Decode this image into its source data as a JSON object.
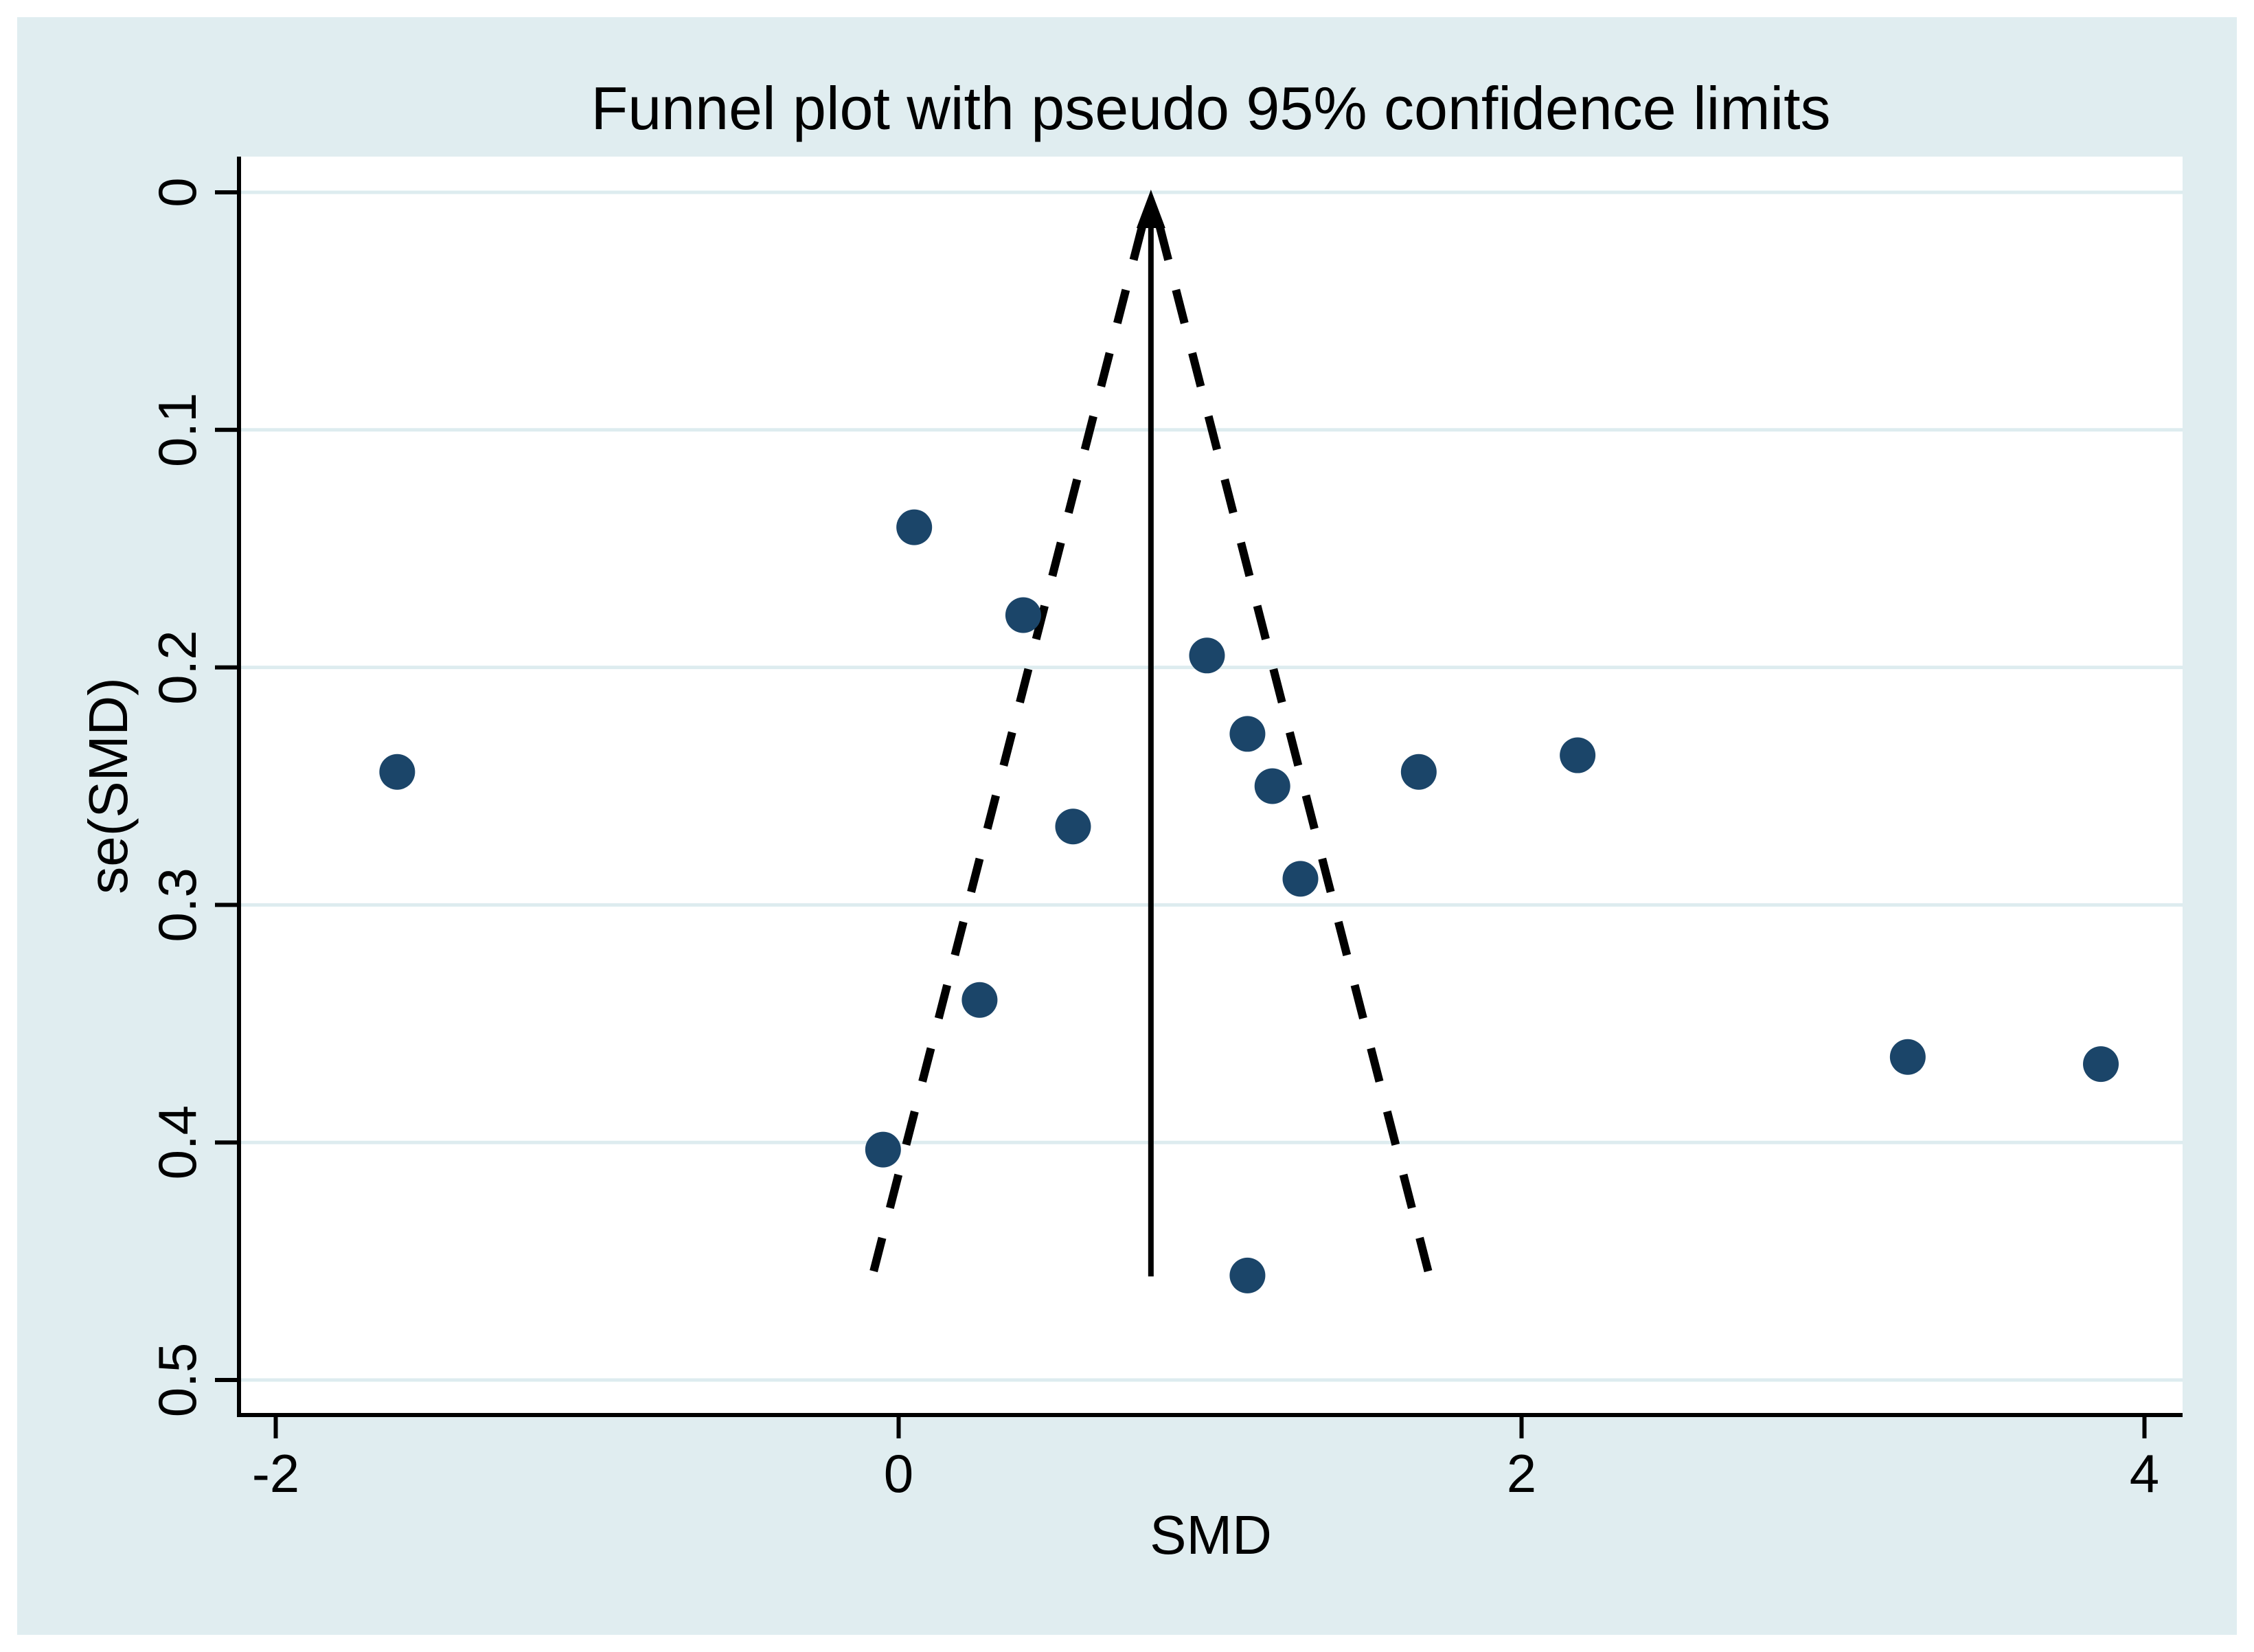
{
  "figure": {
    "title": "Funnel plot with pseudo 95% confidence limits"
  },
  "chart_data": {
    "type": "scatter",
    "title": "Funnel plot with pseudo 95% confidence limits",
    "xlabel": "SMD",
    "ylabel": "se(SMD)",
    "legend": "none",
    "grid": "horizontal",
    "xlim": [
      -2.12,
      4.12
    ],
    "ylim_top_to_bottom": [
      0,
      0.515
    ],
    "y_axis_reversed": true,
    "x_ticks": [
      {
        "value": -2,
        "label": "-2"
      },
      {
        "value": 0,
        "label": "0"
      },
      {
        "value": 2,
        "label": "2"
      },
      {
        "value": 4,
        "label": "4"
      }
    ],
    "y_ticks": [
      {
        "value": 0.0,
        "label": "0"
      },
      {
        "value": 0.1,
        "label": "0.1"
      },
      {
        "value": 0.2,
        "label": "0.2"
      },
      {
        "value": 0.3,
        "label": "0.3"
      },
      {
        "value": 0.4,
        "label": "0.4"
      },
      {
        "value": 0.5,
        "label": "0.5"
      }
    ],
    "funnel": {
      "pooled_effect_smd": 0.81,
      "z": 1.96,
      "se_top": 0,
      "se_bottom": 0.459,
      "center_line_style": "solid-with-up-arrow",
      "limit_line_style": "dashed"
    },
    "points": [
      {
        "smd": -1.61,
        "se": 0.244
      },
      {
        "smd": 0.05,
        "se": 0.141
      },
      {
        "smd": 0.4,
        "se": 0.178
      },
      {
        "smd": 0.99,
        "se": 0.195
      },
      {
        "smd": 1.12,
        "se": 0.228
      },
      {
        "smd": 1.2,
        "se": 0.25
      },
      {
        "smd": 0.56,
        "se": 0.267
      },
      {
        "smd": 1.29,
        "se": 0.289
      },
      {
        "smd": 1.67,
        "se": 0.244
      },
      {
        "smd": 2.18,
        "se": 0.237
      },
      {
        "smd": 0.26,
        "se": 0.34
      },
      {
        "smd": 3.24,
        "se": 0.364
      },
      {
        "smd": 3.86,
        "se": 0.367
      },
      {
        "smd": -0.05,
        "se": 0.403
      },
      {
        "smd": 1.12,
        "se": 0.456
      }
    ],
    "colors": {
      "canvas_border": "#ffffff",
      "background": "#e0edf0",
      "plot_background": "#ffffff",
      "gridline": "#ddecef",
      "axis": "#000000",
      "funnel_lines": "#000000",
      "marker": "#1b4569",
      "text": "#000000"
    }
  }
}
